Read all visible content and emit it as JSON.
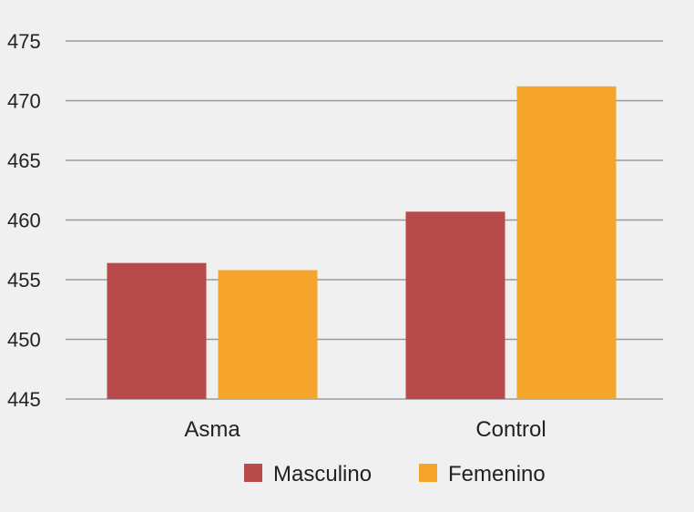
{
  "chart_data": {
    "type": "bar",
    "categories": [
      "Asma",
      "Control"
    ],
    "series": [
      {
        "name": "Masculino",
        "color": "#b94a4c",
        "values": [
          456.4,
          460.7
        ]
      },
      {
        "name": "Femenino",
        "color": "#f5a52a",
        "values": [
          455.8,
          471.2
        ]
      }
    ],
    "title": "",
    "xlabel": "",
    "ylabel": "",
    "ylim": [
      445,
      475
    ],
    "yticks": [
      445,
      450,
      455,
      460,
      465,
      470,
      475
    ],
    "grid": true,
    "legend_position": "bottom"
  }
}
